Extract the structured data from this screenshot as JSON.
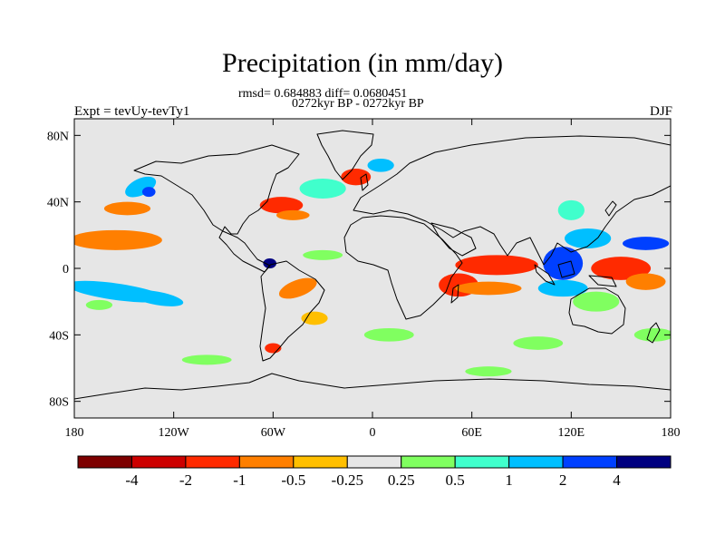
{
  "title": "Precipitation (in mm/day)",
  "stats_line": "rmsd= 0.684883 diff= 0.0680451",
  "period_line": "0272kyr BP - 0272kyr BP",
  "experiment_label": "Expt = tevUy-tevTy1",
  "season_label": "DJF",
  "map": {
    "projection": "cylindrical equidistant",
    "lon_range": [
      -180,
      180
    ],
    "lat_range": [
      -90,
      90
    ],
    "ocean_land_background": "#e6e6e6",
    "coastline_color": "#000000",
    "lat_ticks": [
      {
        "value": 80,
        "label": "80N"
      },
      {
        "value": 40,
        "label": "40N"
      },
      {
        "value": 0,
        "label": "0"
      },
      {
        "value": -40,
        "label": "40S"
      },
      {
        "value": -80,
        "label": "80S"
      }
    ],
    "lon_ticks": [
      {
        "value": -180,
        "label": "180"
      },
      {
        "value": -120,
        "label": "120W"
      },
      {
        "value": -60,
        "label": "60W"
      },
      {
        "value": 0,
        "label": "0"
      },
      {
        "value": 60,
        "label": "60E"
      },
      {
        "value": 120,
        "label": "120E"
      },
      {
        "value": 180,
        "label": "180"
      }
    ]
  },
  "colorbar": {
    "colors": [
      "#7d0000",
      "#cc0000",
      "#ff2a00",
      "#ff7f00",
      "#ffbf00",
      "#e6e6e6",
      "#80ff60",
      "#40ffcc",
      "#00bfff",
      "#0040ff",
      "#000080"
    ],
    "labels": [
      "-4",
      "-2",
      "-1",
      "-0.5",
      "-0.25",
      "0.25",
      "0.5",
      "1",
      "2",
      "4"
    ]
  },
  "anomalies": [
    {
      "lon": -155,
      "lat": 17,
      "rx": 28,
      "ry": 6,
      "level": 3,
      "rot": 0
    },
    {
      "lon": -148,
      "lat": 36,
      "rx": 14,
      "ry": 4,
      "level": 3,
      "rot": 0
    },
    {
      "lon": -155,
      "lat": -14,
      "rx": 30,
      "ry": 5,
      "level": 8,
      "rot": 8
    },
    {
      "lon": -130,
      "lat": -18,
      "rx": 16,
      "ry": 4,
      "level": 8,
      "rot": 10
    },
    {
      "lon": -165,
      "lat": -22,
      "rx": 8,
      "ry": 3,
      "level": 6,
      "rot": 0
    },
    {
      "lon": -140,
      "lat": 49,
      "rx": 10,
      "ry": 5,
      "level": 8,
      "rot": -25
    },
    {
      "lon": -135,
      "lat": 46,
      "rx": 4,
      "ry": 3,
      "level": 9,
      "rot": 0
    },
    {
      "lon": -55,
      "lat": 38,
      "rx": 13,
      "ry": 5,
      "level": 2,
      "rot": 0
    },
    {
      "lon": -48,
      "lat": 32,
      "rx": 10,
      "ry": 3,
      "level": 3,
      "rot": 0
    },
    {
      "lon": -30,
      "lat": 48,
      "rx": 14,
      "ry": 6,
      "level": 7,
      "rot": 0
    },
    {
      "lon": -10,
      "lat": 55,
      "rx": 9,
      "ry": 5,
      "level": 2,
      "rot": 0
    },
    {
      "lon": 5,
      "lat": 62,
      "rx": 8,
      "ry": 4,
      "level": 8,
      "rot": 0
    },
    {
      "lon": -45,
      "lat": -12,
      "rx": 12,
      "ry": 5,
      "level": 3,
      "rot": -20
    },
    {
      "lon": -35,
      "lat": -30,
      "rx": 8,
      "ry": 4,
      "level": 4,
      "rot": 0
    },
    {
      "lon": -60,
      "lat": -48,
      "rx": 5,
      "ry": 3,
      "level": 2,
      "rot": 0
    },
    {
      "lon": -62,
      "lat": 3,
      "rx": 4,
      "ry": 3,
      "level": 10,
      "rot": 0
    },
    {
      "lon": -30,
      "lat": 8,
      "rx": 12,
      "ry": 3,
      "level": 6,
      "rot": 0
    },
    {
      "lon": 52,
      "lat": -10,
      "rx": 12,
      "ry": 7,
      "level": 2,
      "rot": 0
    },
    {
      "lon": 75,
      "lat": 2,
      "rx": 25,
      "ry": 6,
      "level": 2,
      "rot": 0
    },
    {
      "lon": 70,
      "lat": -12,
      "rx": 20,
      "ry": 4,
      "level": 3,
      "rot": 0
    },
    {
      "lon": 115,
      "lat": 3,
      "rx": 12,
      "ry": 10,
      "level": 9,
      "rot": 0
    },
    {
      "lon": 130,
      "lat": 18,
      "rx": 14,
      "ry": 6,
      "level": 8,
      "rot": 0
    },
    {
      "lon": 115,
      "lat": -12,
      "rx": 15,
      "ry": 5,
      "level": 8,
      "rot": 0
    },
    {
      "lon": 150,
      "lat": 0,
      "rx": 18,
      "ry": 7,
      "level": 2,
      "rot": 0
    },
    {
      "lon": 165,
      "lat": 15,
      "rx": 14,
      "ry": 4,
      "level": 9,
      "rot": 0
    },
    {
      "lon": 165,
      "lat": -8,
      "rx": 12,
      "ry": 5,
      "level": 3,
      "rot": 0
    },
    {
      "lon": 135,
      "lat": -20,
      "rx": 14,
      "ry": 6,
      "level": 6,
      "rot": 0
    },
    {
      "lon": 120,
      "lat": 35,
      "rx": 8,
      "ry": 6,
      "level": 7,
      "rot": 0
    },
    {
      "lon": 170,
      "lat": -40,
      "rx": 12,
      "ry": 4,
      "level": 6,
      "rot": 0
    },
    {
      "lon": 100,
      "lat": -45,
      "rx": 15,
      "ry": 4,
      "level": 6,
      "rot": 0
    },
    {
      "lon": 10,
      "lat": -40,
      "rx": 15,
      "ry": 4,
      "level": 6,
      "rot": 0
    },
    {
      "lon": -100,
      "lat": -55,
      "rx": 15,
      "ry": 3,
      "level": 6,
      "rot": 0
    },
    {
      "lon": 70,
      "lat": -62,
      "rx": 14,
      "ry": 3,
      "level": 6,
      "rot": 0
    }
  ]
}
